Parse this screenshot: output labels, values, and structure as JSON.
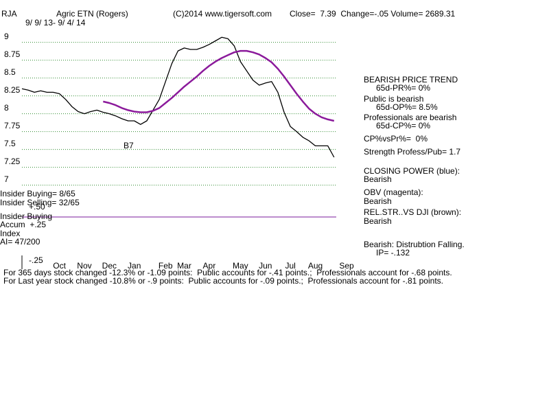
{
  "chart_data": {
    "type": "line",
    "title": "RJA",
    "subtitle": "Agric ETN (Rogers)",
    "copyright": "(C)2014 www.tigersoft.com",
    "quote": "Close=  7.39  Change=-.05 Volume= 2689.31",
    "date_range": "9/ 9/ 13- 9/ 4/ 14",
    "categories": [
      null,
      null,
      null,
      null,
      null,
      null,
      "Oct",
      null,
      null,
      null,
      "Nov",
      null,
      null,
      null,
      "Dec",
      null,
      null,
      null,
      "Jan",
      null,
      null,
      null,
      null,
      "Feb",
      null,
      null,
      "Mar",
      null,
      null,
      null,
      "Apr",
      null,
      null,
      null,
      null,
      "May",
      null,
      null,
      null,
      "Jun",
      null,
      null,
      null,
      "Jul",
      null,
      null,
      null,
      "Aug",
      null,
      null,
      null,
      null,
      "Sep"
    ],
    "series": [
      {
        "color": "#000000",
        "values": [
          8.35,
          8.33,
          8.3,
          8.32,
          8.3,
          8.3,
          8.28,
          8.2,
          8.1,
          8.03,
          8.0,
          8.03,
          8.05,
          8.02,
          8.0,
          7.97,
          7.93,
          7.9,
          7.9,
          7.85,
          7.9,
          8.05,
          8.2,
          8.45,
          8.7,
          8.88,
          8.92,
          8.9,
          8.9,
          8.93,
          8.97,
          9.02,
          9.07,
          9.05,
          8.95,
          8.73,
          8.6,
          8.47,
          8.4,
          8.43,
          8.45,
          8.3,
          8.02,
          7.82,
          7.75,
          7.67,
          7.62,
          7.55,
          7.55,
          7.55,
          7.39,
          null,
          null
        ]
      },
      {
        "color": "#8b1a9b",
        "values": [
          null,
          null,
          null,
          null,
          null,
          null,
          null,
          null,
          null,
          null,
          null,
          null,
          null,
          8.17,
          8.15,
          8.12,
          8.08,
          8.05,
          8.03,
          8.02,
          8.02,
          8.04,
          8.08,
          8.15,
          8.22,
          8.3,
          8.38,
          8.45,
          8.52,
          8.6,
          8.67,
          8.73,
          8.78,
          8.82,
          8.86,
          8.88,
          8.88,
          8.86,
          8.83,
          8.78,
          8.72,
          8.63,
          8.52,
          8.4,
          8.28,
          8.17,
          8.07,
          8.0,
          7.95,
          7.92,
          7.9,
          null,
          null
        ]
      }
    ],
    "ylim": [
      6.9,
      9.4
    ],
    "yticks": [
      7,
      7.25,
      7.5,
      7.75,
      8,
      8.25,
      8.5,
      8.75,
      9
    ],
    "grid": true,
    "grid_color": "#2e8b2e",
    "signal": "B7",
    "side_panel": [
      "BEARISH PRICE TREND",
      "65d-PR%= 0%",
      "Public is bearish",
      "65d-OP%= 8.5%",
      "Professionals are bearish",
      "65d-CP%= 0%",
      "CP%vsPr%=  0%",
      "Strength Profess/Pub= 1.7",
      "CLOSING POWER (blue):",
      "Bearish",
      "OBV (magenta):",
      "Bearish",
      "REL.STR..VS DJI (brown):",
      "Bearish",
      "Bearish: Distrubtion Falling.",
      "IP= -.132"
    ],
    "left_labels": [
      "Insider Buying= 8/65",
      "Insider Selling= 32/65",
      "+.50",
      "Insider Buying",
      "Accum  +.25",
      "Index",
      "AI= 47/200",
      "-.25"
    ],
    "footer": [
      "For 365 days stock changed -12.3% or -1.09 points:  Public accounts for -.41 points.;  Professionals account for -.68 points.",
      "For Last year stock changed -10.8% or -.9 points:  Public accounts for -.09 points.;  Professionals account for -.81 points."
    ]
  }
}
